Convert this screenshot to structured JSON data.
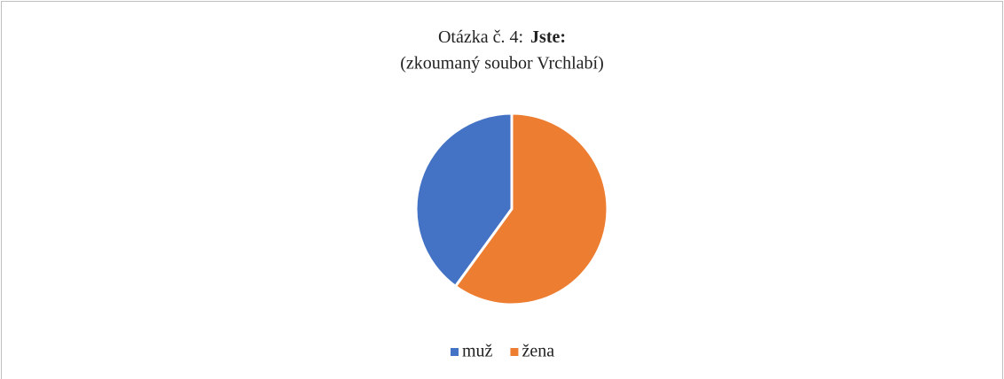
{
  "chart_data": {
    "type": "pie",
    "title": "Otázka č. 4:",
    "title_emphasis": "Jste:",
    "subtitle": "(zkoumaný soubor Vrchlabí)",
    "categories": [
      "muž",
      "žena"
    ],
    "values": [
      40,
      60
    ],
    "colors": [
      "#4472c4",
      "#ed7d31"
    ],
    "legend": "bottom"
  }
}
